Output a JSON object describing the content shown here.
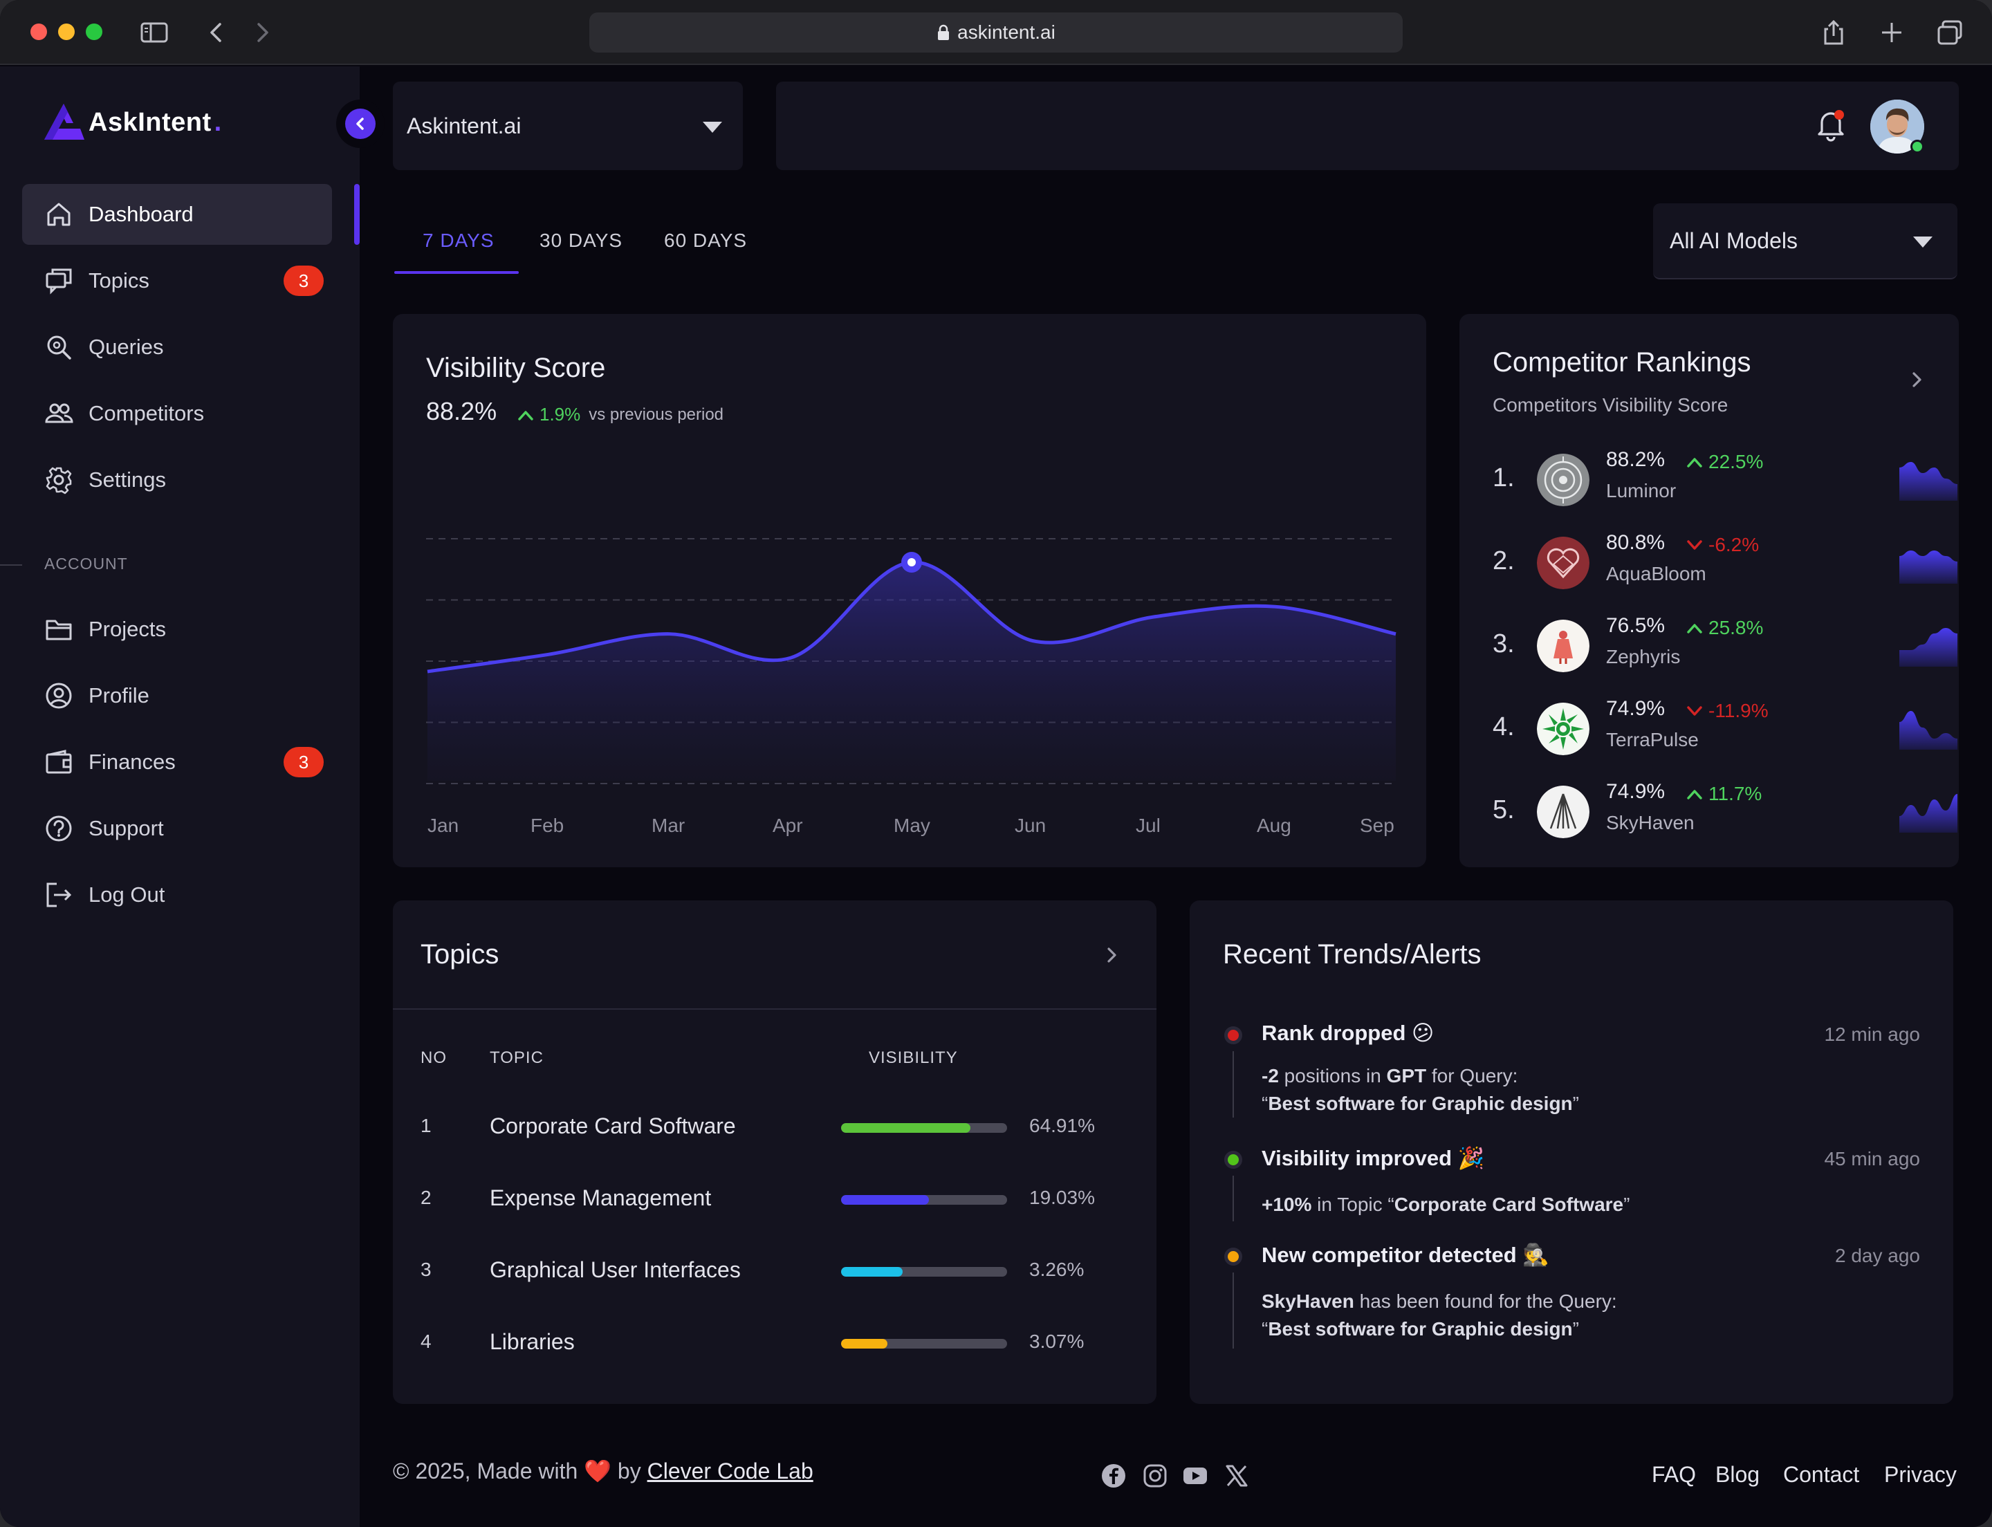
{
  "browser": {
    "url": "askintent.ai"
  },
  "brand": {
    "name": "AskIntent",
    "accent": "#5a33ee"
  },
  "sidebar": {
    "items": [
      {
        "label": "Dashboard",
        "icon": "home-icon",
        "active": true
      },
      {
        "label": "Topics",
        "icon": "chat-icon",
        "badge": "3"
      },
      {
        "label": "Queries",
        "icon": "search-icon"
      },
      {
        "label": "Competitors",
        "icon": "users-icon"
      },
      {
        "label": "Settings",
        "icon": "gear-icon"
      }
    ],
    "account_label": "ACCOUNT",
    "account_items": [
      {
        "label": "Projects",
        "icon": "folder-icon"
      },
      {
        "label": "Profile",
        "icon": "user-circle-icon"
      },
      {
        "label": "Finances",
        "icon": "wallet-icon",
        "badge": "3"
      },
      {
        "label": "Support",
        "icon": "help-icon"
      },
      {
        "label": "Log Out",
        "icon": "logout-icon"
      }
    ]
  },
  "header": {
    "project": "Askintent.ai"
  },
  "tabs": [
    {
      "label": "7 DAYS",
      "active": true
    },
    {
      "label": "30 DAYS"
    },
    {
      "label": "60 DAYS"
    }
  ],
  "models_filter": "All AI Models",
  "visibility": {
    "title": "Visibility Score",
    "score": "88.2%",
    "delta": "1.9%",
    "delta_suffix": "vs previous period",
    "chart_data": {
      "type": "area",
      "categories": [
        "Jan",
        "Feb",
        "Mar",
        "Apr",
        "May",
        "Jun",
        "Jul",
        "Aug",
        "Sep"
      ],
      "values": [
        52,
        57,
        63,
        56,
        84,
        61,
        68,
        71,
        63
      ],
      "ylim": [
        20,
        100
      ],
      "grid": true,
      "highlight_index": 4,
      "color": "#4b3ff0"
    }
  },
  "competitors": {
    "title": "Competitor Rankings",
    "subtitle": "Competitors Visibility Score",
    "rows": [
      {
        "rank": "1.",
        "score": "88.2%",
        "change": "22.5%",
        "up": true,
        "name": "Luminor",
        "spark": [
          6,
          7,
          5,
          6,
          4,
          3
        ]
      },
      {
        "rank": "2.",
        "score": "80.8%",
        "change": "-6.2%",
        "up": false,
        "name": "AquaBloom",
        "spark": [
          5,
          6,
          5,
          6,
          5,
          4
        ]
      },
      {
        "rank": "3.",
        "score": "76.5%",
        "change": "25.8%",
        "up": true,
        "name": "Zephyris",
        "spark": [
          3,
          3,
          4,
          6,
          7,
          6
        ]
      },
      {
        "rank": "4.",
        "score": "74.9%",
        "change": "-11.9%",
        "up": false,
        "name": "TerraPulse",
        "spark": [
          5,
          7,
          4,
          2,
          3,
          2
        ]
      },
      {
        "rank": "5.",
        "score": "74.9%",
        "change": "11.7%",
        "up": true,
        "name": "SkyHaven",
        "spark": [
          3,
          5,
          3,
          6,
          4,
          7
        ]
      }
    ]
  },
  "topics": {
    "title": "Topics",
    "headers": {
      "no": "NO",
      "topic": "TOPIC",
      "visibility": "VISIBILITY"
    },
    "rows": [
      {
        "no": "1",
        "topic": "Corporate Card Software",
        "pct": "64.91%",
        "fill": 0.78,
        "color": "#5cc43a"
      },
      {
        "no": "2",
        "topic": "Expense Management",
        "pct": "19.03%",
        "fill": 0.53,
        "color": "#4a3cf0"
      },
      {
        "no": "3",
        "topic": "Graphical User Interfaces",
        "pct": "3.26%",
        "fill": 0.37,
        "color": "#1cc0e8"
      },
      {
        "no": "4",
        "topic": "Libraries",
        "pct": "3.07%",
        "fill": 0.28,
        "color": "#f7b20f"
      }
    ]
  },
  "alerts": {
    "title": "Recent Trends/Alerts",
    "items": [
      {
        "title": "Rank dropped",
        "emoji": "😕",
        "time": "12 min ago",
        "color": "#d41f1f",
        "line1_bold": "-2",
        "line1_text": " positions in ",
        "line1_bold2": "GPT",
        "line1_tail": " for Query:",
        "line2_open": "“",
        "line2_bold": "Best software for Graphic design",
        "line2_close": "”"
      },
      {
        "title": "Visibility improved",
        "emoji": "🎉",
        "time": "45 min ago",
        "color": "#52c41a",
        "line1_bold": "+10%",
        "line1_text": " in Topic “",
        "line1_bold2": "Corporate Card Software",
        "line1_tail": "”"
      },
      {
        "title": "New competitor detected",
        "emoji": "🕵",
        "time": "2 day ago",
        "color": "#f5a30a",
        "line1_bold": "SkyHaven",
        "line1_text": " has been found for the Query:",
        "line2_open": "“",
        "line2_bold": "Best software for Graphic design",
        "line2_close": "”"
      }
    ]
  },
  "footer": {
    "copyright": "© 2025, Made with",
    "heart": "❤️",
    "by": "by",
    "company": "Clever Code Lab",
    "social": [
      "facebook-icon",
      "instagram-icon",
      "youtube-icon",
      "x-icon"
    ],
    "links": [
      "FAQ",
      "Blog",
      "Contact",
      "Privacy"
    ]
  }
}
